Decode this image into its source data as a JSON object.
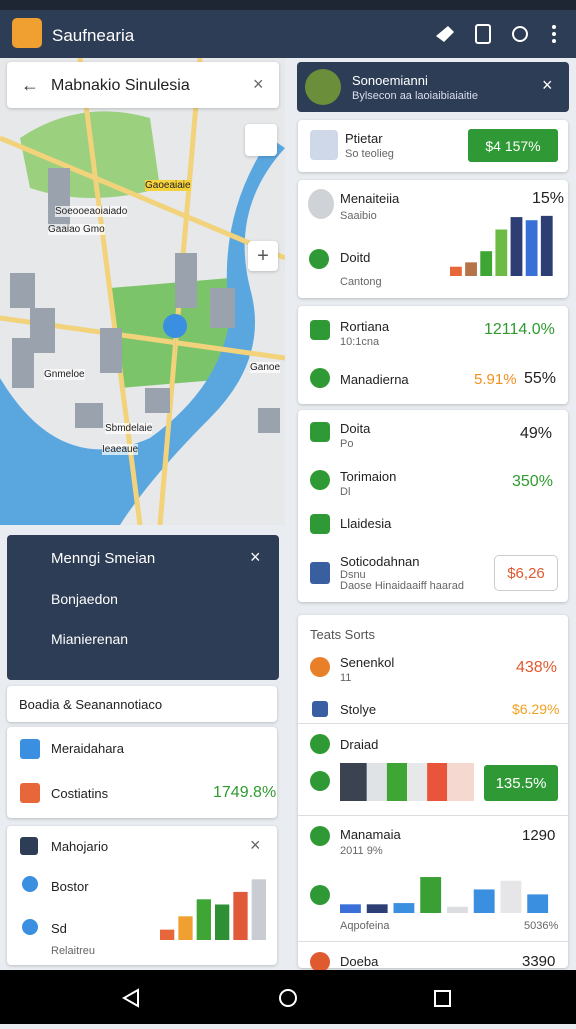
{
  "app_bar": {
    "title": "Saufnearia"
  },
  "map": {
    "search": "Mabnakio Sinulesia",
    "labels": [
      "Gaoeaiaie",
      "Soeooeaoiaiado",
      "Gaaiao Gmo",
      "Gnmeloe",
      "Sbmdelaie",
      "Ieaeaue",
      "Ganoe"
    ]
  },
  "menu_card": {
    "title": "Menngi Smeian",
    "items": [
      "Bonjaedon",
      "Mianierenan"
    ]
  },
  "filter_bar": {
    "text": "Boadia & Seanannotiaco"
  },
  "summary_card": {
    "rows": [
      {
        "label": "Meraidahara"
      },
      {
        "label": "Costiatins",
        "value": "1749.8%"
      }
    ]
  },
  "mini_chart_card": {
    "title": "Mahojario",
    "items": [
      "Bostor",
      "Sd"
    ],
    "footer": "Relaitreu",
    "chart": {
      "values": [
        14,
        32,
        55,
        48,
        65,
        82
      ],
      "colors": [
        "#e8673a",
        "#f0a030",
        "#3fa535",
        "#2f8f35",
        "#e05a3a",
        "#c9ccd2"
      ]
    }
  },
  "panel_header": {
    "title": "Sonoemianni",
    "subtitle": "Bylsecon aa laoiaibiaiaitie"
  },
  "profile_card": {
    "name": "Ptietar",
    "status": "So teolieg",
    "button": "$4 157%"
  },
  "stats_card": {
    "name": "Menaiteiia",
    "sub": "Saaibio",
    "value": "15%",
    "item": "Doitd",
    "footer": "Cantong",
    "chart": {
      "values": [
        15,
        22,
        40,
        75,
        95,
        90,
        97
      ],
      "colors": [
        "#e8673a",
        "#b5734a",
        "#3fa535",
        "#6dbb45",
        "#2c3e73",
        "#3a6fd8",
        "#2c3e73"
      ]
    }
  },
  "metrics_card": {
    "rows": [
      {
        "label": "Rortiana",
        "sub": "10:1cna",
        "value": "12114.0%"
      },
      {
        "label": "Manadierna",
        "value": "5.91%",
        "value2": "55%"
      }
    ]
  },
  "list_card": {
    "rows": [
      {
        "label": "Doita",
        "sub": "Po",
        "value": "49%"
      },
      {
        "label": "Torimaion",
        "sub": "Dl",
        "value": "350%"
      },
      {
        "label": "Llaidesia"
      },
      {
        "label": "Soticodahnan",
        "sub": "Dsnu",
        "note": "Daose Hinaidaaiff haarad",
        "button": "$6,26"
      }
    ]
  },
  "tests_card": {
    "title": "Teats Sorts",
    "rows": [
      {
        "label": "Senenkol",
        "sub": "11",
        "value": "438%"
      },
      {
        "label": "Stolye",
        "value": "$6.29%"
      },
      {
        "label": "Draiad",
        "button": "135.5%",
        "segments": {
          "values": [
            20,
            15,
            15,
            15,
            15,
            20
          ],
          "colors": [
            "#3b4350",
            "#dfe3e6",
            "#3fa535",
            "#e6e8ea",
            "#e8553a",
            "#f5d8d0"
          ]
        }
      },
      {
        "label": "Manamaia",
        "sub": "2011 9%",
        "value": "1290",
        "chart": {
          "values": [
            14,
            14,
            16,
            58,
            10,
            38,
            52,
            30
          ],
          "colors": [
            "#3a6fd8",
            "#2c3e73",
            "#3a8fe0",
            "#3aa035",
            "#dcdde0",
            "#3a8fe0",
            "#e6e6e8",
            "#3a8fe0"
          ]
        },
        "footer": "Aqpofeina",
        "footer_value": "5036%"
      },
      {
        "label": "Doeba",
        "value": "3390"
      }
    ]
  }
}
